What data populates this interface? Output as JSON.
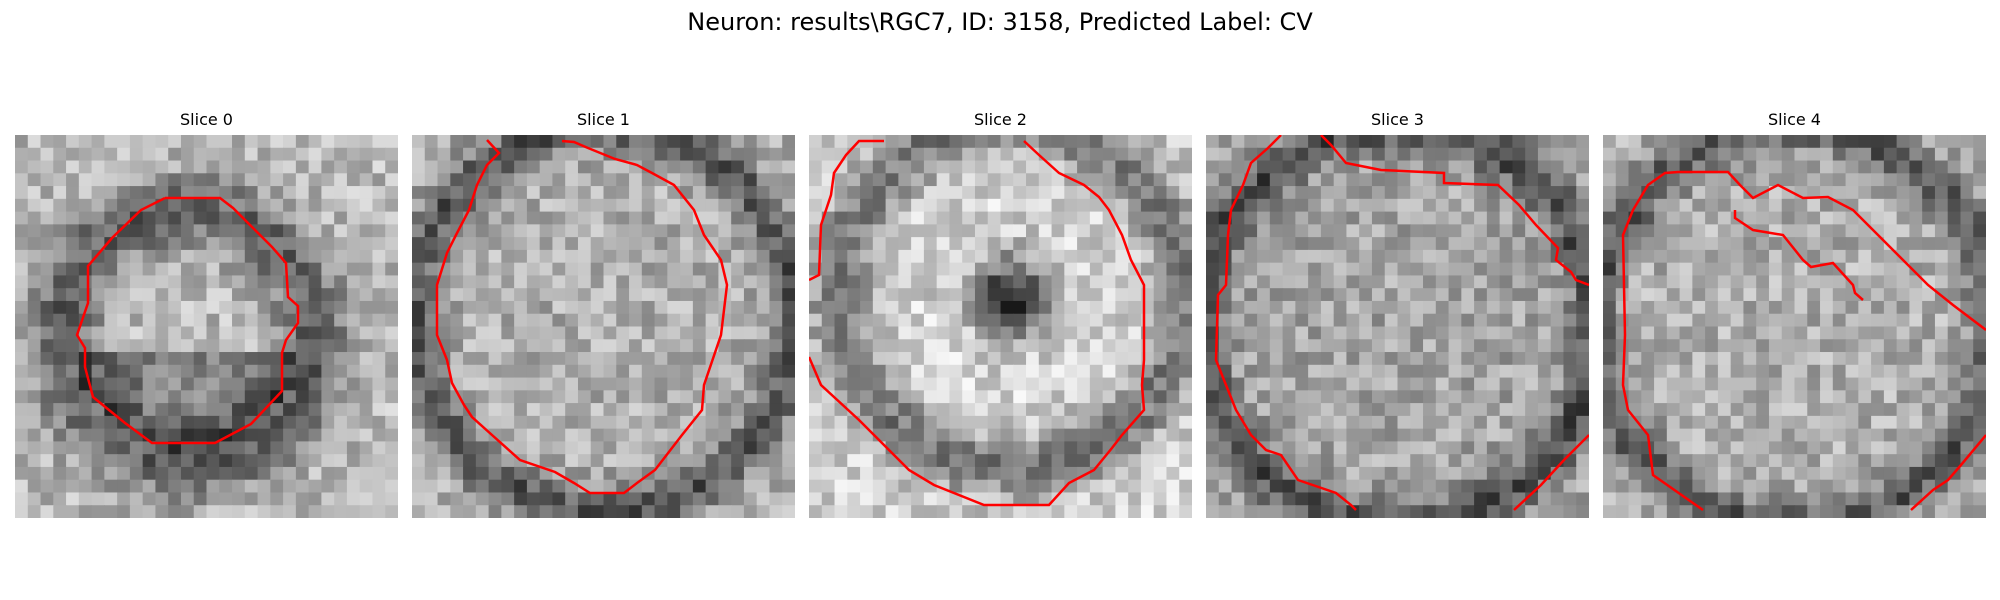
{
  "figure": {
    "title": "Neuron: results\\RGC7, ID: 3158, Predicted Label: CV"
  },
  "panels": [
    {
      "title": "Slice 0"
    },
    {
      "title": "Slice 1"
    },
    {
      "title": "Slice 2"
    },
    {
      "title": "Slice 3"
    },
    {
      "title": "Slice 4"
    }
  ],
  "colors": {
    "contour": "#ff0000",
    "background": "#ffffff"
  }
}
